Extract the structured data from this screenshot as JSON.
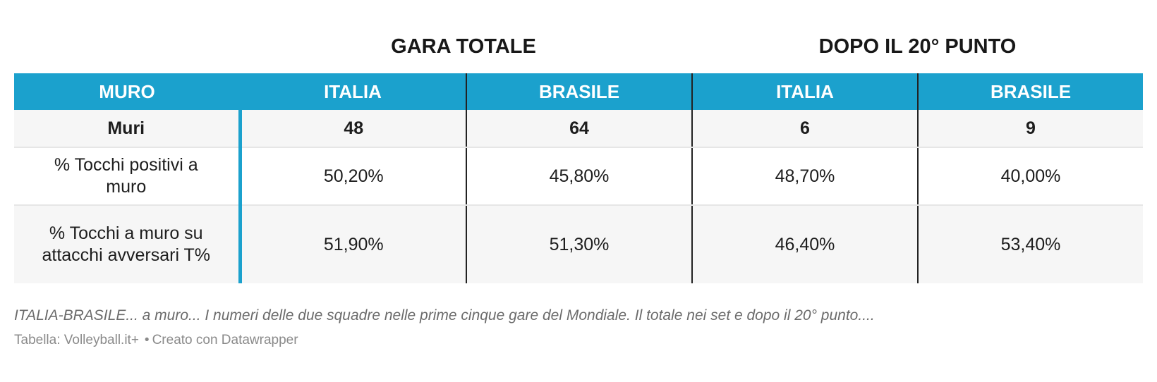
{
  "chart_data": {
    "type": "table",
    "column_groups": [
      {
        "label": "GARA TOTALE",
        "span": [
          "ITALIA",
          "BRASILE"
        ]
      },
      {
        "label": "DOPO IL 20° PUNTO",
        "span": [
          "ITALIA",
          "BRASILE"
        ]
      }
    ],
    "headers": [
      "MURO",
      "ITALIA",
      "BRASILE",
      "ITALIA",
      "BRASILE"
    ],
    "rows": [
      [
        "Muri",
        "48",
        "64",
        "6",
        "9"
      ],
      [
        "% Tocchi positivi a muro",
        "50,20%",
        "45,80%",
        "48,70%",
        "40,00%"
      ],
      [
        "% Tocchi a muro su attacchi avversari T%",
        "51,90%",
        "51,30%",
        "46,40%",
        "53,40%"
      ]
    ],
    "colors": {
      "header_bg": "#1ba1cd",
      "header_text": "#ffffff"
    }
  },
  "footer": {
    "note": "ITALIA-BRASILE... a muro... I numeri delle due squadre nelle prime cinque gare del Mondiale. Il totale nei set e dopo il 20° punto....",
    "source": "Tabella: Volleyball.it+",
    "separator": "•",
    "made_with": "Creato con Datawrapper"
  }
}
